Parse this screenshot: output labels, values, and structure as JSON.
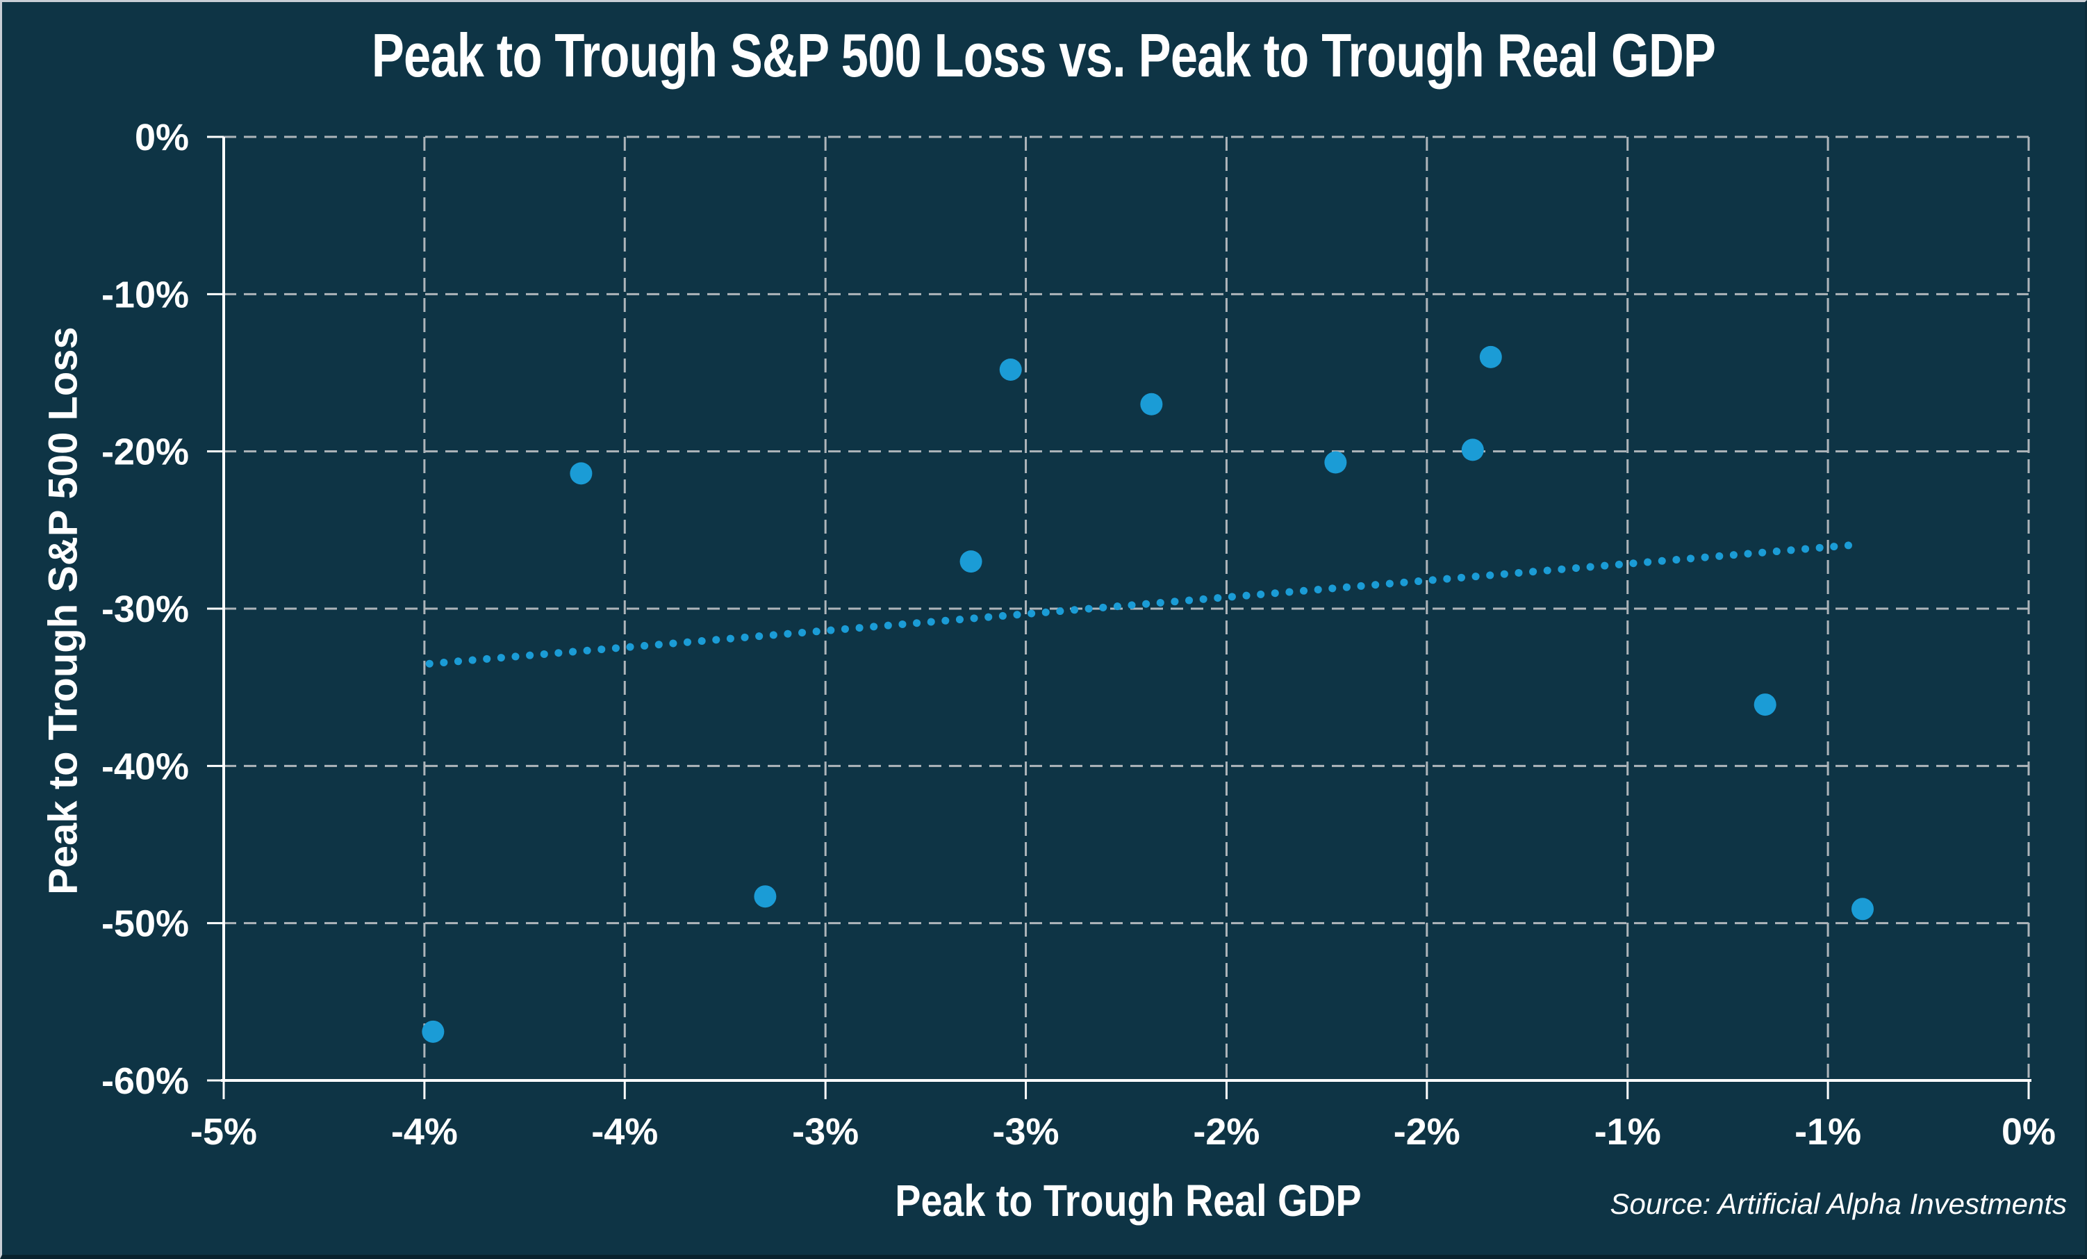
{
  "title": "Peak to Trough S&P 500 Loss vs. Peak to Trough Real GDP",
  "source": "Source: Artificial Alpha Investments",
  "colors": {
    "background": "#0E3445",
    "point": "#1B9CD6",
    "trend": "#1B9CD6",
    "gridline": "#AEB5BA",
    "axis": "#FFFFFF",
    "text": "#FFFFFF"
  },
  "x_axis": {
    "title": "Peak to Trough Real GDP",
    "min": -5,
    "max": 0,
    "tick_labels": [
      "-5%",
      "-4%",
      "-4%",
      "-3%",
      "-3%",
      "-2%",
      "-2%",
      "-1%",
      "-1%",
      "0%"
    ],
    "tick_values": [
      -5,
      -4.444,
      -3.889,
      -3.333,
      -2.778,
      -2.222,
      -1.667,
      -1.111,
      -0.556,
      0
    ]
  },
  "y_axis": {
    "title": "Peak to Trough S&P 500 Loss",
    "min": -60,
    "max": 0,
    "tick_labels": [
      "0%",
      "-10%",
      "-20%",
      "-30%",
      "-40%",
      "-50%",
      "-60%"
    ],
    "tick_values": [
      0,
      -10,
      -20,
      -30,
      -40,
      -50,
      -60
    ]
  },
  "chart_data": {
    "type": "scatter",
    "title": "Peak to Trough S&P 500 Loss vs. Peak to Trough Real GDP",
    "xlabel": "Peak to Trough Real GDP",
    "ylabel": "Peak to Trough S&P 500 Loss",
    "xlim": [
      -5,
      0
    ],
    "ylim": [
      -60,
      0
    ],
    "grid": "dashed",
    "legend": "none",
    "x_unit": "%",
    "y_unit": "%",
    "points": [
      {
        "x": -4.42,
        "y": -56.9
      },
      {
        "x": -4.01,
        "y": -21.4
      },
      {
        "x": -3.5,
        "y": -48.3
      },
      {
        "x": -2.93,
        "y": -27.0
      },
      {
        "x": -2.82,
        "y": -14.8
      },
      {
        "x": -2.43,
        "y": -17.0
      },
      {
        "x": -1.92,
        "y": -20.7
      },
      {
        "x": -1.54,
        "y": -19.9
      },
      {
        "x": -1.49,
        "y": -14.0
      },
      {
        "x": -0.73,
        "y": -36.1
      },
      {
        "x": -0.46,
        "y": -49.1
      }
    ],
    "trendline": {
      "style": "dotted",
      "x1": -4.43,
      "y1": -33.5,
      "x2": -0.46,
      "y2": -25.9
    }
  }
}
